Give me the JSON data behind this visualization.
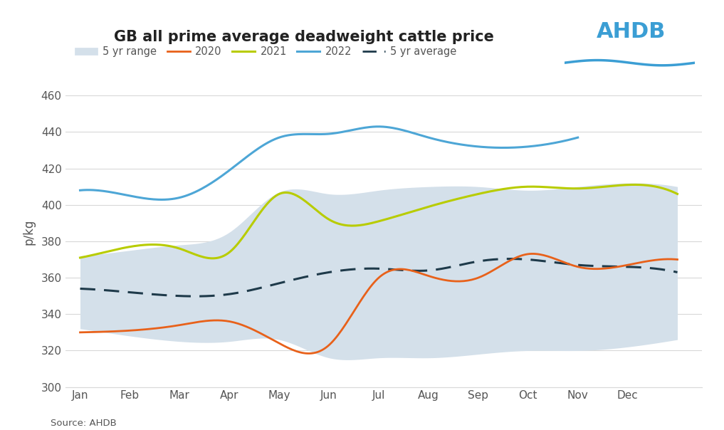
{
  "title": "GB all prime average deadweight cattle price",
  "ylabel": "p/kg",
  "source": "Source: AHDB",
  "fig_bg": "#ffffff",
  "plot_bg": "#ffffff",
  "ylim": [
    300,
    470
  ],
  "yticks": [
    300,
    320,
    340,
    360,
    380,
    400,
    420,
    440,
    460
  ],
  "months": [
    "Jan",
    "Feb",
    "Mar",
    "Apr",
    "May",
    "Jun",
    "Jul",
    "Aug",
    "Sep",
    "Oct",
    "Nov",
    "Dec"
  ],
  "range_upper": [
    372,
    375,
    378,
    385,
    407,
    406,
    408,
    410,
    410,
    408,
    410,
    412,
    410
  ],
  "range_lower": [
    332,
    328,
    325,
    325,
    326,
    316,
    316,
    316,
    318,
    320,
    320,
    322,
    326
  ],
  "y_2020": [
    330,
    331,
    334,
    336,
    324,
    323,
    360,
    361,
    360,
    373,
    366,
    367,
    370
  ],
  "y_2021": [
    371,
    377,
    376,
    374,
    406,
    392,
    391,
    399,
    406,
    410,
    409,
    411,
    406
  ],
  "y_2022": [
    408,
    405,
    404,
    419,
    437,
    439,
    443,
    437,
    432,
    432,
    437,
    null,
    null
  ],
  "y_5yr": [
    354,
    352,
    350,
    351,
    357,
    363,
    365,
    364,
    369,
    370,
    367,
    366,
    363
  ],
  "color_2020": "#e8611a",
  "color_2021": "#b8cc00",
  "color_2022": "#4da6d6",
  "color_5yr_avg": "#1e3a4a",
  "color_range_fill": "#d4e0ea",
  "color_range_edge": "#c0d0de",
  "grid_color": "#d8d8d8",
  "tick_color": "#555555",
  "title_color": "#222222",
  "legend_text_color": "#555555"
}
